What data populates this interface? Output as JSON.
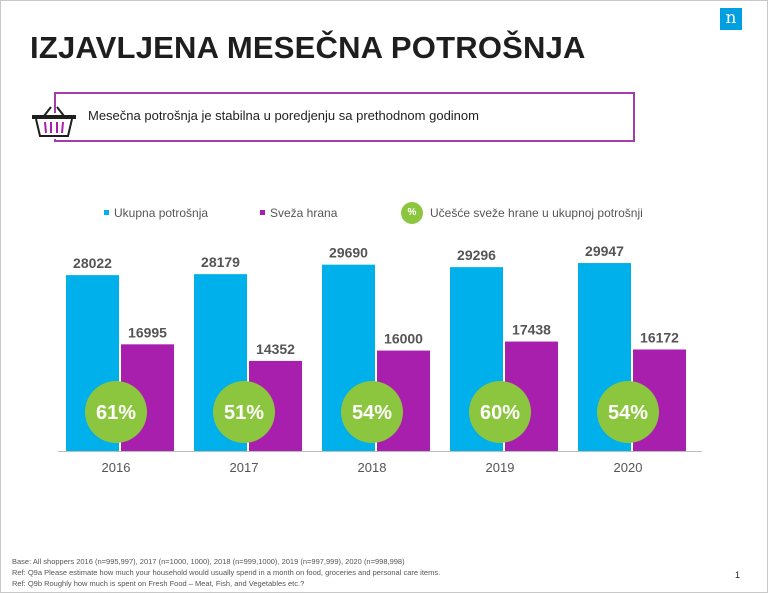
{
  "title": "IZJAVLJENA MESEČNA POTROŠNJA",
  "logo_letter": "n",
  "callout": "Mesečna potrošnja je stabilna u poredjenju sa prethodnom godinom",
  "legend": {
    "total": "Ukupna potrošnja",
    "fresh": "Sveža hrana",
    "pct_symbol": "%",
    "pct": "Učešće sveže hrane u ukupnoj potrošnji"
  },
  "colors": {
    "total": "#00b0ea",
    "fresh": "#a81ead",
    "pct": "#8cc63f",
    "accent": "#a13ea7"
  },
  "chart_data": {
    "type": "bar",
    "categories": [
      "2016",
      "2017",
      "2018",
      "2019",
      "2020"
    ],
    "series": [
      {
        "name": "Ukupna potrošnja",
        "values": [
          28022,
          28179,
          29690,
          29296,
          29947
        ]
      },
      {
        "name": "Sveža hrana",
        "values": [
          16995,
          14352,
          16000,
          17438,
          16172
        ]
      }
    ],
    "share_labels": [
      "61%",
      "51%",
      "54%",
      "60%",
      "54%"
    ],
    "ylim": [
      0,
      33000
    ],
    "grid": false,
    "legend_position": "top"
  },
  "footnotes": [
    "Base: All shoppers 2016 (n=995,997), 2017 (n=1000, 1000), 2018 (n=999,1000), 2019 (n=997,999), 2020 (n=998,998)",
    "Ref: Q9a Please estimate how much your household would usually spend in a month on food, groceries and personal care items.",
    "Ref: Q9b Roughly how much is spent on Fresh Food – Meat, Fish, and Vegetables etc.?"
  ],
  "page_number": "1"
}
